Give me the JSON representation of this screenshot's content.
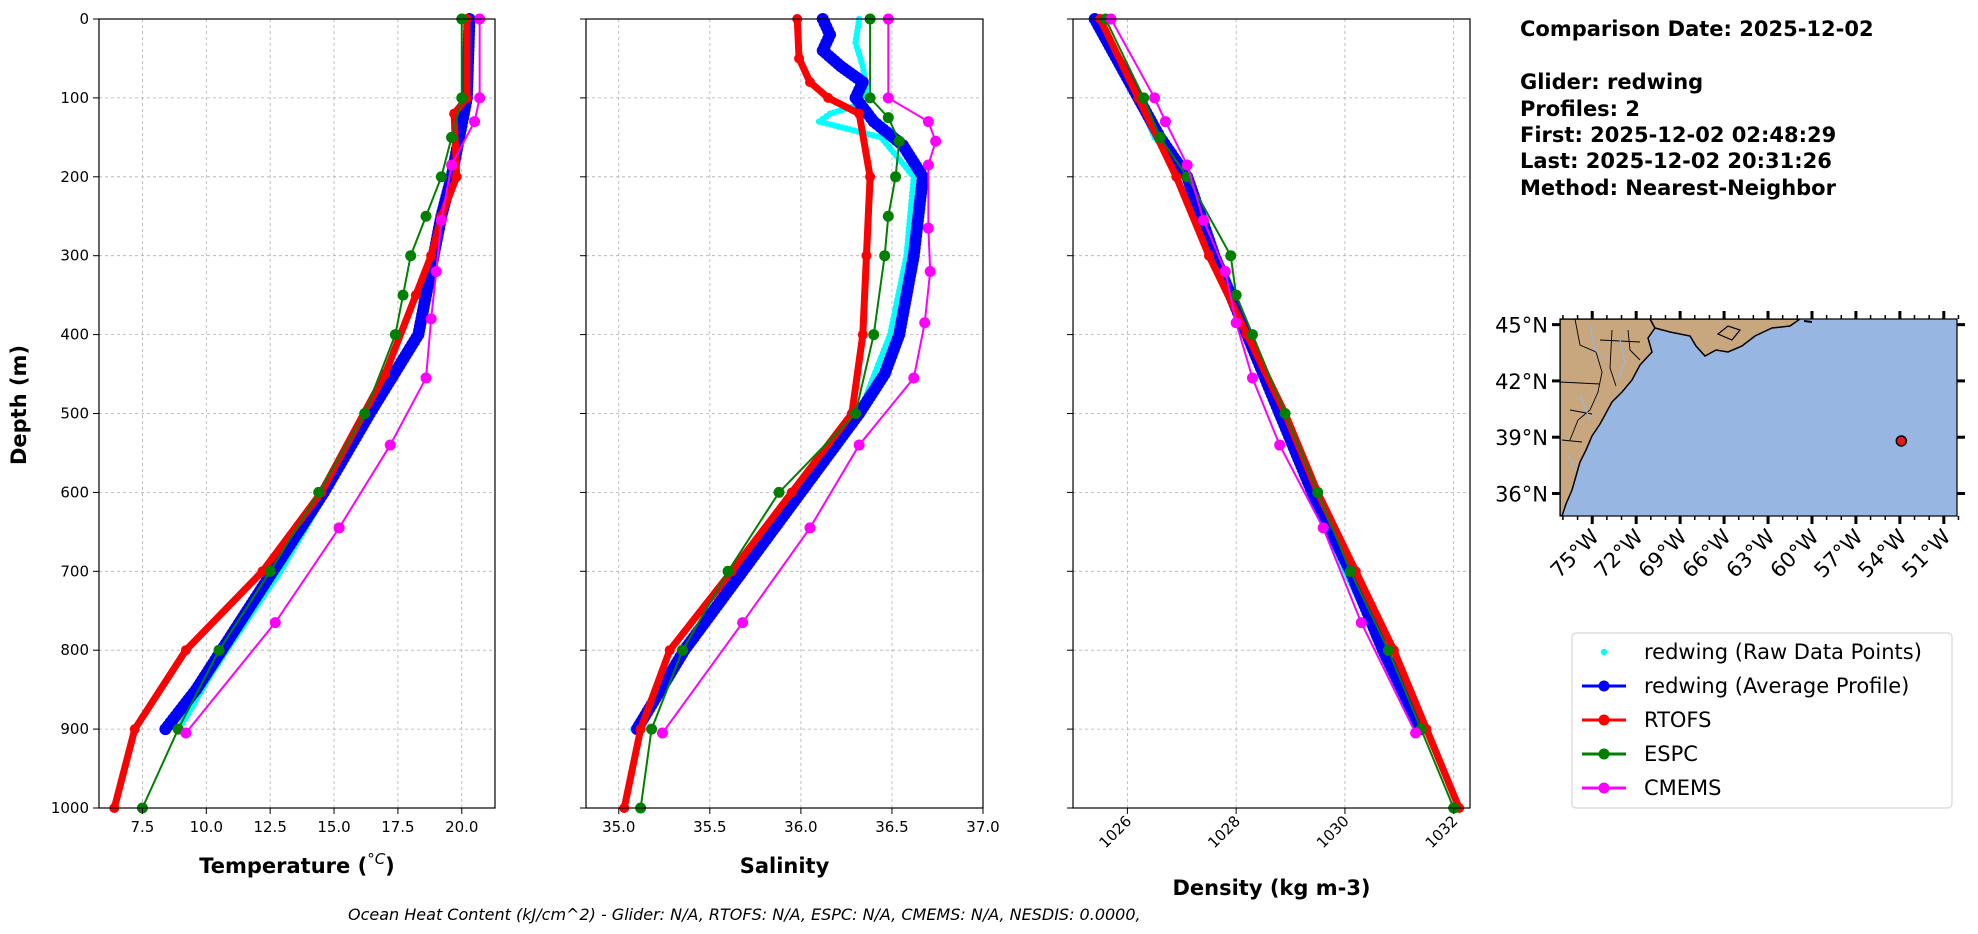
{
  "info": {
    "comparison_date": "Comparison Date: 2025-12-02",
    "glider": "Glider: redwing",
    "profiles": "Profiles: 2",
    "first": "First: 2025-12-02 02:48:29",
    "last": "Last: 2025-12-02 20:31:26",
    "method": "Method: Nearest-Neighbor"
  },
  "footer": "Ocean Heat Content (kJ/cm^2) - Glider: N/A,  RTOFS: N/A,  ESPC: N/A,  CMEMS: N/A,  NESDIS: 0.0000,",
  "colors": {
    "raw": "#00ffff",
    "glider": "#0000ff",
    "rtofs": "#ff0000",
    "espc": "#008000",
    "cmems": "#ff00ff",
    "land": "#c8a77e",
    "ocean": "#97b6e1"
  },
  "legend": [
    {
      "label": "redwing (Raw Data Points)",
      "key": "raw"
    },
    {
      "label": "redwing (Average Profile)",
      "key": "glider"
    },
    {
      "label": "RTOFS",
      "key": "rtofs"
    },
    {
      "label": "ESPC",
      "key": "espc"
    },
    {
      "label": "CMEMS",
      "key": "cmems"
    }
  ],
  "map": {
    "lat_labels": [
      "45°N",
      "42°N",
      "39°N",
      "36°N"
    ],
    "lon_labels": [
      "75°W",
      "72°W",
      "69°W",
      "66°W",
      "63°W",
      "60°W",
      "57°W",
      "54°W",
      "51°W"
    ],
    "glider_position": {
      "lon": -53.9,
      "lat": 38.8
    }
  },
  "chart_data": [
    {
      "type": "line",
      "xlabel": "Temperature (°C)",
      "ylabel": "Depth (m)",
      "xlim": [
        5.8,
        21.3
      ],
      "ylim": [
        1000,
        0
      ],
      "xticks": [
        "7.5",
        "10.0",
        "12.5",
        "15.0",
        "17.5",
        "20.0"
      ],
      "yticks": [
        "0",
        "100",
        "200",
        "300",
        "400",
        "500",
        "600",
        "700",
        "800",
        "900",
        "1000"
      ],
      "grid": true,
      "series": [
        {
          "key": "raw",
          "depth": [
            0,
            100,
            150,
            200,
            250,
            300,
            400,
            500,
            600,
            700,
            800,
            830,
            880,
            900
          ],
          "values": [
            20.2,
            20.2,
            19.9,
            19.6,
            19.2,
            18.9,
            18.3,
            16.4,
            14.7,
            12.9,
            10.8,
            10.2,
            9.3,
            8.9
          ]
        },
        {
          "key": "glider",
          "depth": [
            0,
            100,
            150,
            200,
            250,
            300,
            400,
            500,
            600,
            700,
            800,
            850,
            900
          ],
          "values": [
            20.3,
            20.2,
            19.9,
            19.6,
            19.2,
            18.9,
            18.3,
            16.4,
            14.6,
            12.6,
            10.6,
            9.6,
            8.4
          ]
        },
        {
          "key": "rtofs",
          "depth": [
            0,
            100,
            120,
            200,
            250,
            300,
            350,
            450,
            600,
            700,
            800,
            900,
            1000
          ],
          "values": [
            20.2,
            20.2,
            19.7,
            19.8,
            19.2,
            18.8,
            18.2,
            17.0,
            14.5,
            12.2,
            9.2,
            7.2,
            6.4
          ]
        },
        {
          "key": "espc",
          "depth": [
            0,
            100,
            150,
            200,
            250,
            300,
            350,
            400,
            500,
            600,
            700,
            800,
            900,
            1000
          ],
          "values": [
            20.0,
            20.0,
            19.6,
            19.2,
            18.6,
            18.0,
            17.7,
            17.4,
            16.2,
            14.4,
            12.5,
            10.5,
            8.9,
            7.5
          ]
        },
        {
          "key": "cmems",
          "depth": [
            0,
            100,
            130,
            185,
            255,
            320,
            380,
            455,
            540,
            645,
            765,
            905
          ],
          "values": [
            20.7,
            20.7,
            20.5,
            19.6,
            19.2,
            19.0,
            18.8,
            18.6,
            17.2,
            15.2,
            12.7,
            9.2
          ]
        }
      ]
    },
    {
      "type": "line",
      "xlabel": "Salinity",
      "xlim": [
        34.82,
        37.0
      ],
      "ylim": [
        1000,
        0
      ],
      "xticks": [
        "35.0",
        "35.5",
        "36.0",
        "36.5",
        "37.0"
      ],
      "grid": true,
      "series": [
        {
          "key": "raw",
          "depth": [
            0,
            30,
            60,
            90,
            110,
            120,
            130,
            150,
            200,
            300,
            400,
            500,
            600,
            700,
            800,
            900
          ],
          "values": [
            36.32,
            36.3,
            36.34,
            36.36,
            36.3,
            36.16,
            36.1,
            36.44,
            36.62,
            36.58,
            36.49,
            36.32,
            36.0,
            35.68,
            35.36,
            35.08
          ]
        },
        {
          "key": "glider",
          "depth": [
            0,
            20,
            40,
            60,
            80,
            100,
            130,
            160,
            200,
            300,
            350,
            400,
            450,
            500,
            600,
            700,
            800,
            900
          ],
          "values": [
            36.12,
            36.16,
            36.12,
            36.22,
            36.34,
            36.3,
            36.4,
            36.56,
            36.67,
            36.62,
            36.58,
            36.54,
            36.46,
            36.32,
            36.0,
            35.68,
            35.36,
            35.1
          ]
        },
        {
          "key": "rtofs",
          "depth": [
            0,
            50,
            80,
            100,
            120,
            200,
            300,
            400,
            500,
            600,
            700,
            800,
            900,
            1000
          ],
          "values": [
            35.98,
            35.99,
            36.05,
            36.15,
            36.32,
            36.38,
            36.36,
            36.34,
            36.28,
            35.95,
            35.62,
            35.28,
            35.12,
            35.03
          ]
        },
        {
          "key": "espc",
          "depth": [
            0,
            100,
            125,
            155,
            200,
            250,
            300,
            400,
            500,
            600,
            700,
            800,
            900,
            1000
          ],
          "values": [
            36.38,
            36.38,
            36.48,
            36.54,
            36.52,
            36.48,
            36.46,
            36.4,
            36.3,
            35.88,
            35.6,
            35.35,
            35.18,
            35.12
          ]
        },
        {
          "key": "cmems",
          "depth": [
            0,
            100,
            130,
            155,
            185,
            265,
            320,
            385,
            455,
            540,
            645,
            765,
            905
          ],
          "values": [
            36.48,
            36.48,
            36.7,
            36.74,
            36.7,
            36.7,
            36.71,
            36.68,
            36.62,
            36.32,
            36.05,
            35.68,
            35.24
          ]
        }
      ]
    },
    {
      "type": "line",
      "xlabel": "Density (kg m-3)",
      "xlim": [
        1025.0,
        1032.3
      ],
      "ylim": [
        1000,
        0
      ],
      "xticks": [
        "1026",
        "1028",
        "1030",
        "1032"
      ],
      "grid": true,
      "series": [
        {
          "key": "raw",
          "depth": [
            0,
            100,
            150,
            200,
            300,
            400,
            500,
            600,
            700,
            800,
            900
          ],
          "values": [
            1025.4,
            1026.2,
            1026.5,
            1027.1,
            1027.6,
            1028.2,
            1028.8,
            1029.4,
            1030.0,
            1030.7,
            1031.3
          ]
        },
        {
          "key": "glider",
          "depth": [
            0,
            100,
            150,
            200,
            300,
            400,
            500,
            600,
            700,
            800,
            900
          ],
          "values": [
            1025.4,
            1026.2,
            1026.6,
            1027.1,
            1027.6,
            1028.2,
            1028.8,
            1029.4,
            1030.1,
            1030.7,
            1031.4
          ]
        },
        {
          "key": "rtofs",
          "depth": [
            0,
            100,
            200,
            300,
            400,
            500,
            600,
            700,
            800,
            900,
            1000
          ],
          "values": [
            1025.5,
            1026.2,
            1026.9,
            1027.5,
            1028.2,
            1028.9,
            1029.5,
            1030.2,
            1030.9,
            1031.5,
            1032.1
          ]
        },
        {
          "key": "espc",
          "depth": [
            0,
            100,
            150,
            200,
            300,
            350,
            400,
            500,
            600,
            700,
            800,
            900,
            1000
          ],
          "values": [
            1025.6,
            1026.3,
            1026.6,
            1027.1,
            1027.9,
            1028.0,
            1028.3,
            1028.9,
            1029.5,
            1030.1,
            1030.8,
            1031.4,
            1032.0
          ]
        },
        {
          "key": "cmems",
          "depth": [
            0,
            100,
            130,
            185,
            255,
            320,
            385,
            455,
            540,
            645,
            765,
            905
          ],
          "values": [
            1025.7,
            1026.5,
            1026.7,
            1027.1,
            1027.4,
            1027.8,
            1028.0,
            1028.3,
            1028.8,
            1029.6,
            1030.3,
            1031.3
          ]
        }
      ]
    }
  ]
}
